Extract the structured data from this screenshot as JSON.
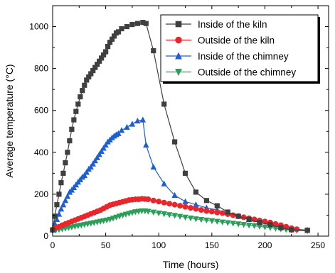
{
  "chart_data": {
    "type": "line",
    "xlabel": "Time (hours)",
    "ylabel": "Average temperature (°C)",
    "xlim": [
      0,
      260
    ],
    "ylim": [
      0,
      1100
    ],
    "xticks": [
      0,
      50,
      100,
      150,
      200,
      250
    ],
    "yticks": [
      0,
      200,
      400,
      600,
      800,
      1000
    ],
    "legend_position": "top-right",
    "series": [
      {
        "name": "Inside of the kiln",
        "color": "#3f3f3f",
        "marker": "square",
        "x": [
          0,
          2,
          4,
          6,
          8,
          10,
          12,
          14,
          16,
          18,
          20,
          22,
          24,
          26,
          28,
          30,
          32,
          34,
          36,
          38,
          40,
          42,
          44,
          46,
          48,
          50,
          52,
          54,
          56,
          58,
          60,
          62,
          65,
          70,
          75,
          80,
          85,
          88,
          95,
          105,
          115,
          125,
          135,
          145,
          155,
          165,
          175,
          185,
          195,
          205,
          215,
          225,
          240
        ],
        "y": [
          30,
          95,
          150,
          200,
          255,
          300,
          350,
          400,
          455,
          510,
          555,
          595,
          630,
          665,
          695,
          720,
          745,
          760,
          775,
          790,
          805,
          820,
          835,
          850,
          865,
          880,
          905,
          925,
          940,
          955,
          970,
          975,
          990,
          1000,
          1010,
          1015,
          1020,
          1015,
          885,
          630,
          450,
          300,
          210,
          170,
          145,
          115,
          95,
          80,
          65,
          55,
          40,
          30,
          28
        ]
      },
      {
        "name": "Outside of the kiln",
        "color": "#e8262b",
        "marker": "circle",
        "x": [
          0,
          3,
          6,
          9,
          12,
          15,
          18,
          21,
          24,
          27,
          30,
          33,
          36,
          39,
          42,
          45,
          48,
          51,
          54,
          57,
          60,
          63,
          66,
          69,
          72,
          75,
          78,
          81,
          84,
          87,
          90,
          95,
          100,
          105,
          110,
          115,
          120,
          125,
          130,
          135,
          140,
          145,
          150,
          155,
          160,
          165,
          170,
          175,
          180,
          185,
          190,
          195,
          200,
          205,
          210,
          215,
          220,
          225,
          230,
          240
        ],
        "y": [
          30,
          40,
          45,
          52,
          58,
          64,
          70,
          76,
          82,
          88,
          94,
          100,
          106,
          112,
          118,
          124,
          132,
          140,
          148,
          152,
          156,
          160,
          164,
          168,
          172,
          174,
          176,
          176,
          178,
          177,
          176,
          170,
          165,
          160,
          155,
          150,
          145,
          140,
          135,
          130,
          125,
          120,
          117,
          113,
          110,
          105,
          100,
          95,
          90,
          85,
          80,
          75,
          70,
          65,
          58,
          52,
          45,
          38,
          33,
          28
        ]
      },
      {
        "name": "Inside of the chimney",
        "color": "#1e5fd0",
        "marker": "triangle-up",
        "x": [
          0,
          2,
          4,
          6,
          8,
          10,
          12,
          14,
          16,
          18,
          20,
          22,
          24,
          26,
          28,
          30,
          32,
          34,
          36,
          38,
          40,
          42,
          44,
          46,
          48,
          50,
          52,
          54,
          56,
          58,
          60,
          62,
          65,
          70,
          75,
          80,
          85,
          88,
          95,
          105,
          115,
          125,
          135,
          145,
          155,
          165,
          175,
          185,
          195,
          205,
          215,
          225,
          240
        ],
        "y": [
          30,
          60,
          80,
          105,
          130,
          150,
          170,
          190,
          210,
          220,
          232,
          245,
          258,
          270,
          282,
          290,
          305,
          320,
          330,
          345,
          360,
          375,
          390,
          405,
          420,
          435,
          450,
          460,
          470,
          478,
          485,
          490,
          505,
          520,
          535,
          550,
          555,
          435,
          330,
          250,
          195,
          165,
          150,
          135,
          125,
          110,
          95,
          80,
          68,
          55,
          45,
          35,
          28
        ]
      },
      {
        "name": "Outside of the chimney",
        "color": "#2b9e58",
        "marker": "triangle-down",
        "x": [
          0,
          3,
          6,
          9,
          12,
          15,
          18,
          21,
          24,
          27,
          30,
          33,
          36,
          39,
          42,
          45,
          48,
          51,
          54,
          57,
          60,
          63,
          66,
          69,
          72,
          75,
          78,
          81,
          84,
          87,
          90,
          95,
          100,
          105,
          110,
          115,
          120,
          125,
          130,
          135,
          140,
          145,
          150,
          155,
          160,
          165,
          170,
          175,
          180,
          185,
          190,
          195,
          200,
          205,
          210,
          215,
          220,
          225,
          230,
          240
        ],
        "y": [
          25,
          28,
          31,
          34,
          37,
          40,
          43,
          46,
          49,
          52,
          55,
          58,
          61,
          64,
          67,
          70,
          73,
          76,
          80,
          85,
          90,
          95,
          100,
          104,
          108,
          112,
          116,
          118,
          120,
          120,
          118,
          114,
          110,
          106,
          102,
          98,
          94,
          90,
          86,
          82,
          79,
          76,
          73,
          70,
          67,
          64,
          61,
          58,
          55,
          52,
          49,
          46,
          43,
          40,
          37,
          34,
          31,
          29,
          27,
          25
        ]
      }
    ]
  }
}
